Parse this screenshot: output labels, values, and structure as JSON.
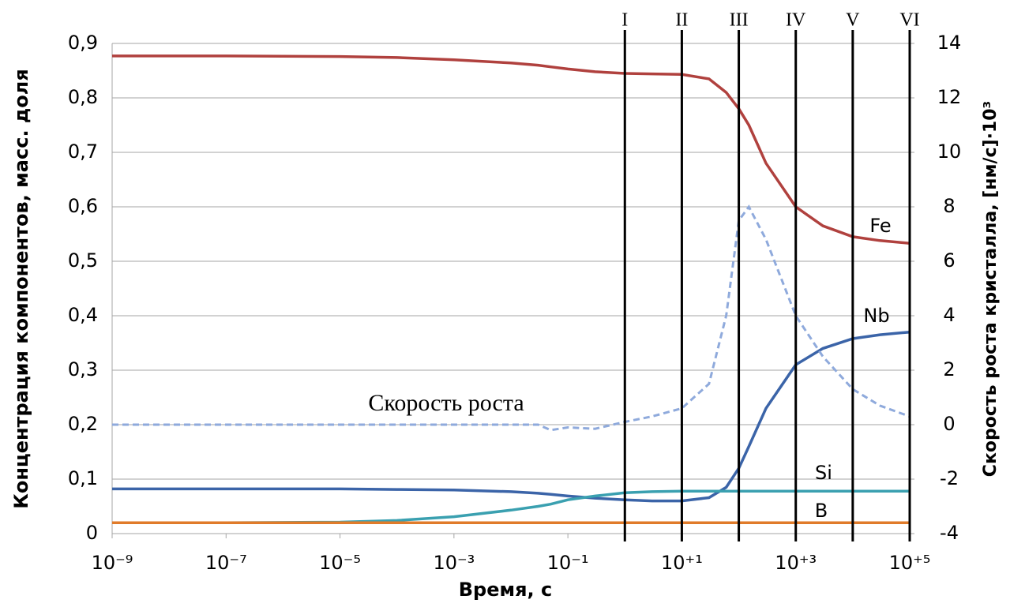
{
  "chart_data": {
    "type": "line",
    "x_label": "Время, с",
    "y_label": "Концентрация компонентов, масс. доля",
    "y2_label": "Скорость роста кристалла, [нм/с]·10³",
    "log_x": true,
    "grid": true,
    "x": [
      1e-09,
      1e-07,
      1e-05,
      0.0001,
      0.001,
      0.01,
      0.03,
      0.05,
      0.1,
      0.3,
      1,
      3,
      10,
      30,
      60,
      100,
      150,
      300,
      1000,
      3000,
      10000,
      30000,
      100000
    ],
    "xlim": [
      1e-09,
      100000
    ],
    "xticks": [
      {
        "value": 1e-09,
        "label": "10⁻⁹"
      },
      {
        "value": 1e-07,
        "label": "10⁻⁷"
      },
      {
        "value": 1e-05,
        "label": "10⁻⁵"
      },
      {
        "value": 0.001,
        "label": "10⁻³"
      },
      {
        "value": 0.1,
        "label": "10⁻¹"
      },
      {
        "value": 10,
        "label": "10⁺¹"
      },
      {
        "value": 1000,
        "label": "10⁺³"
      },
      {
        "value": 100000,
        "label": "10⁺⁵"
      }
    ],
    "ylim": [
      0,
      0.9
    ],
    "yticks": [
      0,
      {
        "value": 0.1,
        "label": "0,1"
      },
      {
        "value": 0.2,
        "label": "0,2"
      },
      {
        "value": 0.3,
        "label": "0,3"
      },
      {
        "value": 0.4,
        "label": "0,4"
      },
      {
        "value": 0.5,
        "label": "0,5"
      },
      {
        "value": 0.6,
        "label": "0,6"
      },
      {
        "value": 0.7,
        "label": "0,7"
      },
      {
        "value": 0.8,
        "label": "0,8"
      },
      {
        "value": 0.9,
        "label": "0,9"
      }
    ],
    "y2lim": [
      -4,
      14
    ],
    "y2ticks": [
      -4,
      -2,
      0,
      2,
      4,
      6,
      8,
      10,
      12,
      14
    ],
    "markers": [
      {
        "label": "I",
        "x": 1
      },
      {
        "label": "II",
        "x": 10
      },
      {
        "label": "III",
        "x": 100
      },
      {
        "label": "IV",
        "x": 1000
      },
      {
        "label": "V",
        "x": 10000
      },
      {
        "label": "VI",
        "x": 100000
      }
    ],
    "series": [
      {
        "name": "Fe",
        "color": "#b0413e",
        "values": [
          0.877,
          0.877,
          0.876,
          0.874,
          0.87,
          0.864,
          0.86,
          0.857,
          0.853,
          0.848,
          0.845,
          0.844,
          0.843,
          0.835,
          0.81,
          0.78,
          0.75,
          0.68,
          0.6,
          0.565,
          0.545,
          0.538,
          0.533
        ]
      },
      {
        "name": "Nb",
        "color": "#3b64a8",
        "values": [
          0.082,
          0.082,
          0.082,
          0.081,
          0.08,
          0.077,
          0.074,
          0.072,
          0.069,
          0.065,
          0.062,
          0.06,
          0.06,
          0.066,
          0.085,
          0.12,
          0.16,
          0.23,
          0.31,
          0.34,
          0.358,
          0.365,
          0.37
        ]
      },
      {
        "name": "Si",
        "color": "#3aa0b0",
        "values": [
          0.02,
          0.02,
          0.021,
          0.024,
          0.031,
          0.043,
          0.05,
          0.054,
          0.062,
          0.069,
          0.075,
          0.077,
          0.078,
          0.078,
          0.078,
          0.078,
          0.078,
          0.078,
          0.078,
          0.078,
          0.078,
          0.078,
          0.078
        ]
      },
      {
        "name": "B",
        "color": "#e07b2a",
        "values": [
          0.02,
          0.02,
          0.02,
          0.02,
          0.02,
          0.02,
          0.02,
          0.02,
          0.02,
          0.02,
          0.02,
          0.02,
          0.02,
          0.02,
          0.02,
          0.02,
          0.02,
          0.02,
          0.02,
          0.02,
          0.02,
          0.02,
          0.02
        ]
      },
      {
        "name": "Скорость роста",
        "color": "#8faadc",
        "axis": "y2",
        "dashed": true,
        "values": [
          0,
          0,
          0,
          0,
          0,
          0,
          0,
          -0.2,
          -0.1,
          -0.15,
          0.1,
          0.3,
          0.6,
          1.5,
          4,
          7.5,
          8,
          6.8,
          4,
          2.5,
          1.3,
          0.7,
          0.3
        ]
      }
    ]
  }
}
